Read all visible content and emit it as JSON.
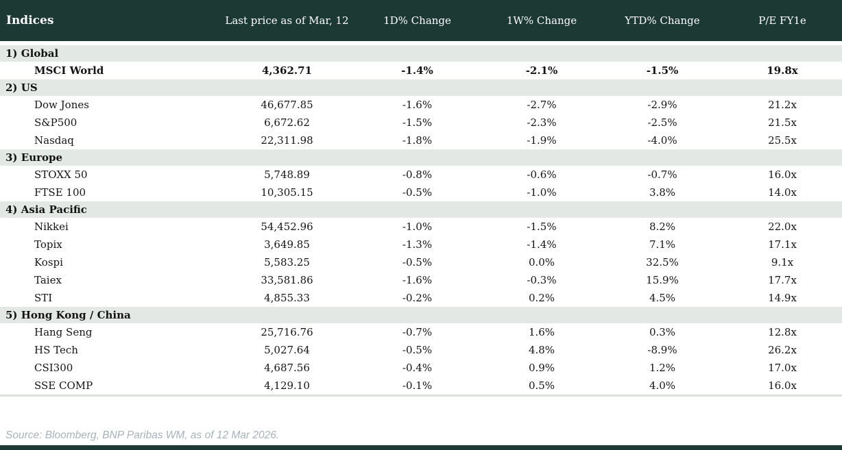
{
  "theme": {
    "header-bg": "#1c3933",
    "section-bg": "#e4e8e4",
    "negative": "#c00000",
    "positive": "#0a9143",
    "source-gray": "#a9b1b8"
  },
  "footer": {
    "source": "Source: Bloomberg, BNP Paribas WM, as of 12 Mar 2026."
  },
  "chart_data": {
    "type": "table",
    "title": "Indices",
    "columns": [
      "Last price as of Mar, 12",
      "1D% Change",
      "1W% Change",
      "YTD% Change",
      "P/E FY1e"
    ],
    "sections": [
      {
        "label": "1) Global",
        "rows": [
          {
            "name": "MSCI World",
            "price": "4,362.71",
            "d1": {
              "v": "-1.4%",
              "c": "neg"
            },
            "w1": {
              "v": "-2.1%",
              "c": "neg"
            },
            "ytd": {
              "v": "-1.5%",
              "c": "neg"
            },
            "pe": "19.8x",
            "bold": true
          }
        ]
      },
      {
        "label": "2) US",
        "rows": [
          {
            "name": "Dow Jones",
            "price": "46,677.85",
            "d1": {
              "v": "-1.6%",
              "c": "neg"
            },
            "w1": {
              "v": "-2.7%",
              "c": "neg"
            },
            "ytd": {
              "v": "-2.9%",
              "c": "neg"
            },
            "pe": "21.2x",
            "bold": false
          },
          {
            "name": "S&P500",
            "price": "6,672.62",
            "d1": {
              "v": "-1.5%",
              "c": "neg"
            },
            "w1": {
              "v": "-2.3%",
              "c": "neg"
            },
            "ytd": {
              "v": "-2.5%",
              "c": "neg"
            },
            "pe": "21.5x",
            "bold": false
          },
          {
            "name": "Nasdaq",
            "price": "22,311.98",
            "d1": {
              "v": "-1.8%",
              "c": "neg"
            },
            "w1": {
              "v": "-1.9%",
              "c": "neg"
            },
            "ytd": {
              "v": "-4.0%",
              "c": "neg"
            },
            "pe": "25.5x",
            "bold": false
          }
        ]
      },
      {
        "label": "3) Europe",
        "rows": [
          {
            "name": "STOXX 50",
            "price": "5,748.89",
            "d1": {
              "v": "-0.8%",
              "c": "neg"
            },
            "w1": {
              "v": "-0.6%",
              "c": "neg"
            },
            "ytd": {
              "v": "-0.7%",
              "c": "neg"
            },
            "pe": "16.0x",
            "bold": false
          },
          {
            "name": "FTSE 100",
            "price": "10,305.15",
            "d1": {
              "v": "-0.5%",
              "c": "neg"
            },
            "w1": {
              "v": "-1.0%",
              "c": "neg"
            },
            "ytd": {
              "v": "3.8%",
              "c": "pos"
            },
            "pe": "14.0x",
            "bold": false
          }
        ]
      },
      {
        "label": "4) Asia Pacific",
        "rows": [
          {
            "name": "Nikkei",
            "price": "54,452.96",
            "d1": {
              "v": "-1.0%",
              "c": "neg"
            },
            "w1": {
              "v": "-1.5%",
              "c": "neg"
            },
            "ytd": {
              "v": "8.2%",
              "c": "pos"
            },
            "pe": "22.0x",
            "bold": false
          },
          {
            "name": "Topix",
            "price": "3,649.85",
            "d1": {
              "v": "-1.3%",
              "c": "neg"
            },
            "w1": {
              "v": "-1.4%",
              "c": "neg"
            },
            "ytd": {
              "v": "7.1%",
              "c": "pos"
            },
            "pe": "17.1x",
            "bold": false
          },
          {
            "name": "Kospi",
            "price": "5,583.25",
            "d1": {
              "v": "-0.5%",
              "c": "neg"
            },
            "w1": {
              "v": "0.0%",
              "c": "neg"
            },
            "ytd": {
              "v": "32.5%",
              "c": "pos"
            },
            "pe": "9.1x",
            "bold": false
          },
          {
            "name": "Taiex",
            "price": "33,581.86",
            "d1": {
              "v": "-1.6%",
              "c": "neg"
            },
            "w1": {
              "v": "-0.3%",
              "c": "neg"
            },
            "ytd": {
              "v": "15.9%",
              "c": "pos"
            },
            "pe": "17.7x",
            "bold": false
          },
          {
            "name": "STI",
            "price": "4,855.33",
            "d1": {
              "v": "-0.2%",
              "c": "neg"
            },
            "w1": {
              "v": "0.2%",
              "c": "pos"
            },
            "ytd": {
              "v": "4.5%",
              "c": "pos"
            },
            "pe": "14.9x",
            "bold": false
          }
        ]
      },
      {
        "label": "5) Hong Kong / China",
        "rows": [
          {
            "name": "Hang Seng",
            "price": "25,716.76",
            "d1": {
              "v": "-0.7%",
              "c": "neg"
            },
            "w1": {
              "v": "1.6%",
              "c": "pos"
            },
            "ytd": {
              "v": "0.3%",
              "c": "pos"
            },
            "pe": "12.8x",
            "bold": false
          },
          {
            "name": "HS Tech",
            "price": "5,027.64",
            "d1": {
              "v": "-0.5%",
              "c": "neg"
            },
            "w1": {
              "v": "4.8%",
              "c": "pos"
            },
            "ytd": {
              "v": "-8.9%",
              "c": "neg"
            },
            "pe": "26.2x",
            "bold": false
          },
          {
            "name": "CSI300",
            "price": "4,687.56",
            "d1": {
              "v": "-0.4%",
              "c": "neg"
            },
            "w1": {
              "v": "0.9%",
              "c": "pos"
            },
            "ytd": {
              "v": "1.2%",
              "c": "pos"
            },
            "pe": "17.0x",
            "bold": false
          },
          {
            "name": "SSE COMP",
            "price": "4,129.10",
            "d1": {
              "v": "-0.1%",
              "c": "neg"
            },
            "w1": {
              "v": "0.5%",
              "c": "pos"
            },
            "ytd": {
              "v": "4.0%",
              "c": "pos"
            },
            "pe": "16.0x",
            "bold": false
          }
        ]
      }
    ]
  }
}
